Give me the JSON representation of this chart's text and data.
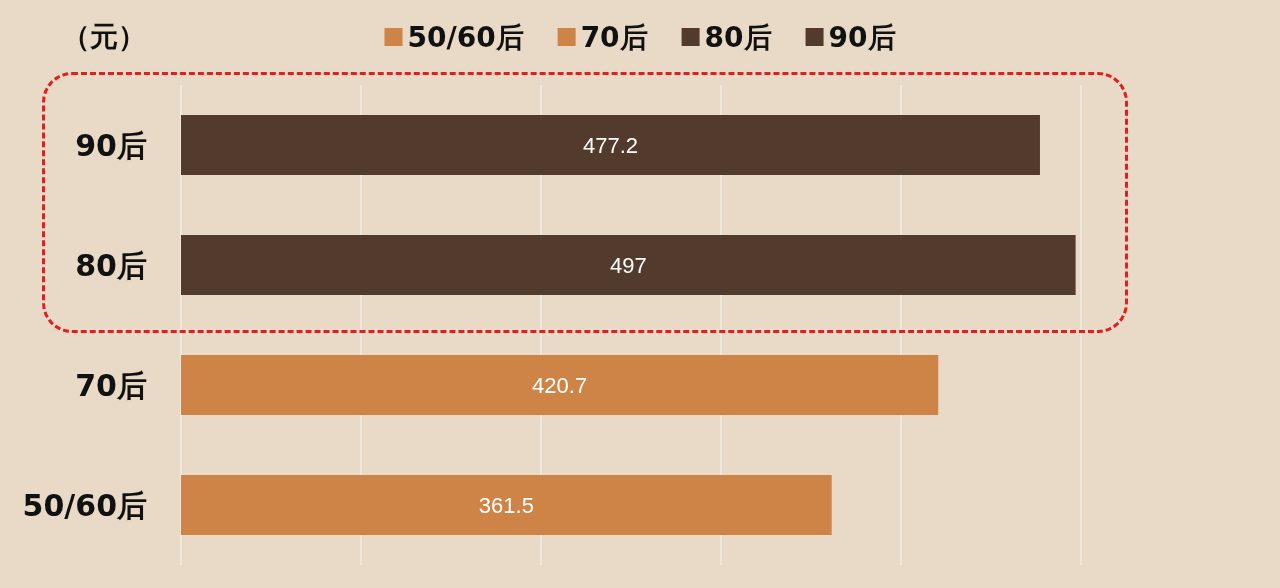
{
  "chart_data": {
    "type": "bar",
    "orientation": "horizontal",
    "stacked": true,
    "ylabel": "（元）",
    "categories": [
      "90后",
      "80后",
      "70后",
      "50/60后"
    ],
    "series": [
      {
        "name": "50/60后",
        "color": "#cd8446",
        "values": [
          null,
          null,
          null,
          361.5
        ]
      },
      {
        "name": "70后",
        "color": "#cd8446",
        "values": [
          null,
          null,
          420.7,
          null
        ]
      },
      {
        "name": "80后",
        "color": "#523a2c",
        "values": [
          null,
          497,
          null,
          null
        ]
      },
      {
        "name": "90后",
        "color": "#523a2c",
        "values": [
          477.2,
          null,
          null,
          null
        ]
      }
    ],
    "xlim": [
      0,
      500
    ],
    "xticks": [
      0,
      100,
      200,
      300,
      400,
      500
    ],
    "tick_labels": "y",
    "grid": "x",
    "legend": "top",
    "data_labels": true
  }
}
